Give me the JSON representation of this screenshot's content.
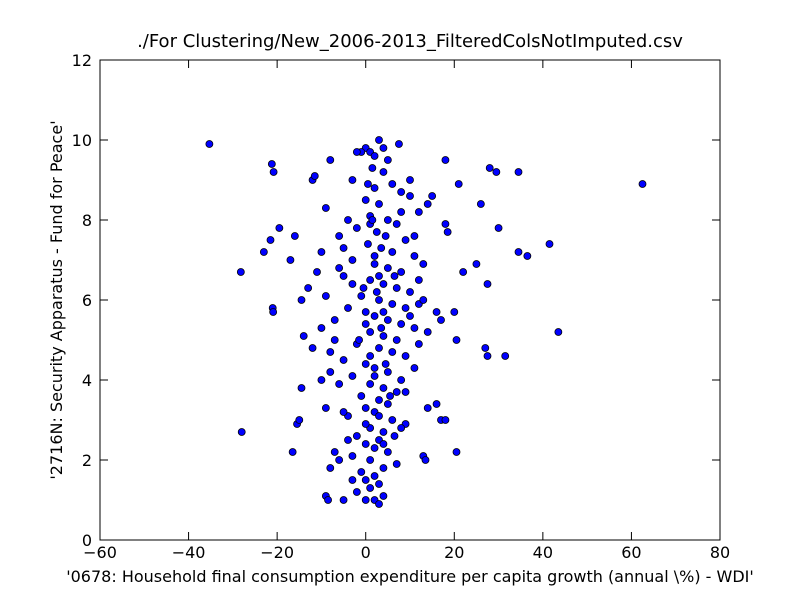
{
  "chart_data": {
    "type": "scatter",
    "title": "./For Clustering/New_2006-2013_FilteredColsNotImputed.csv",
    "x_label": "'0678: Household final consumption expenditure per capita growth  (annual \\%) - WDI'",
    "y_label": "'2716N: Security Apparatus - Fund for Peace'",
    "color": "#0000ff",
    "xlim": [
      -60,
      80
    ],
    "ylim": [
      0,
      12
    ],
    "xticks": [
      {
        "value": -60,
        "label": "−60"
      },
      {
        "value": -40,
        "label": "−40"
      },
      {
        "value": -20,
        "label": "−20"
      },
      0,
      20,
      40,
      60,
      80
    ],
    "yticks": [
      0,
      2,
      4,
      6,
      8,
      10,
      12
    ],
    "x": [
      -35.3,
      -21.2,
      -20.8,
      -28.2,
      -28,
      -21,
      -20.9,
      -16.5,
      -15.5,
      -15,
      -14.5,
      -17,
      -23,
      -21.5,
      -19.5,
      -12,
      -11.5,
      -8,
      -16,
      -14.5,
      -13,
      -14,
      -12,
      -10,
      -9,
      -8.5,
      18,
      21,
      26,
      28,
      29.5,
      34.5,
      62.5,
      30,
      34.5,
      36.5,
      41.5,
      22,
      25,
      27.5,
      43.5,
      20.5,
      27,
      27.5,
      31.5,
      20.5,
      17,
      18,
      16,
      14,
      13,
      13.5,
      20,
      16,
      17,
      15,
      14,
      18,
      18.5,
      0,
      1,
      2,
      3,
      4,
      -1,
      7.5,
      5,
      -2,
      1.5,
      4,
      -3,
      2,
      6,
      8,
      0,
      3,
      -4,
      10,
      12,
      1,
      5,
      7,
      -2,
      2.5,
      4.5,
      9,
      -6,
      0.5,
      3.5,
      6,
      11,
      -3,
      2,
      5,
      8,
      13,
      -5,
      1,
      4,
      7,
      10,
      -1,
      3,
      6,
      9,
      12,
      -4,
      0,
      2,
      5,
      8,
      11,
      -7,
      1,
      4,
      7,
      -2,
      14,
      3,
      6,
      9,
      -5,
      0,
      2,
      5,
      -3,
      8,
      1,
      4,
      7,
      -1,
      3,
      5,
      0,
      2,
      -4,
      6,
      9,
      1,
      4,
      -2,
      3,
      0,
      2,
      5,
      -3,
      1,
      7,
      4,
      -1,
      2,
      0,
      3,
      1,
      -2,
      4,
      2,
      0,
      3,
      -5,
      -6,
      -3,
      -7,
      -8,
      -6,
      -5,
      -4,
      -6,
      -3,
      10,
      8,
      11,
      12,
      13,
      10,
      12,
      11,
      9,
      8,
      -9,
      -10,
      -11,
      -9,
      -10,
      -8,
      -9,
      -7,
      -8,
      -5,
      1,
      2,
      3,
      4,
      0,
      1,
      2,
      3,
      0,
      4,
      0.5,
      1.5,
      2.5,
      3.5,
      4.5,
      5.5,
      6.5,
      -0.5,
      -1.5,
      6.5
    ],
    "values": [
      9.9,
      9.4,
      9.2,
      6.7,
      2.7,
      5.8,
      5.7,
      2.2,
      2.9,
      3.0,
      3.8,
      7.0,
      7.2,
      7.5,
      7.8,
      9.0,
      9.1,
      9.5,
      7.6,
      6.0,
      6.3,
      5.1,
      4.8,
      4.0,
      1.1,
      1.0,
      9.5,
      8.9,
      8.4,
      9.3,
      9.2,
      9.2,
      8.9,
      7.8,
      7.2,
      7.1,
      7.4,
      6.7,
      6.9,
      6.4,
      5.2,
      5.0,
      4.8,
      4.6,
      4.6,
      2.2,
      3.0,
      3.0,
      3.4,
      3.3,
      2.1,
      2.0,
      5.7,
      5.7,
      5.5,
      8.6,
      8.4,
      7.9,
      7.7,
      9.8,
      9.7,
      9.6,
      10.0,
      9.8,
      9.7,
      9.9,
      9.5,
      9.7,
      9.3,
      9.2,
      9.0,
      8.8,
      8.9,
      8.7,
      8.5,
      8.4,
      8.0,
      8.6,
      8.2,
      8.1,
      8.0,
      7.9,
      7.8,
      7.7,
      7.6,
      7.5,
      7.6,
      7.4,
      7.3,
      7.2,
      7.1,
      7.0,
      6.9,
      6.8,
      6.7,
      6.9,
      6.6,
      6.5,
      6.4,
      6.3,
      6.2,
      6.1,
      6.0,
      5.9,
      5.8,
      5.9,
      5.8,
      5.7,
      5.6,
      5.5,
      5.4,
      5.3,
      5.5,
      5.2,
      5.1,
      5.0,
      4.9,
      5.2,
      4.8,
      4.7,
      4.6,
      4.5,
      4.4,
      4.3,
      4.2,
      4.1,
      4.0,
      3.9,
      3.8,
      3.7,
      3.6,
      3.5,
      3.4,
      3.3,
      3.2,
      3.1,
      3.0,
      2.9,
      2.8,
      2.7,
      2.6,
      2.5,
      2.4,
      2.3,
      2.2,
      2.1,
      2.0,
      1.9,
      1.8,
      1.7,
      1.6,
      1.5,
      1.4,
      1.3,
      1.2,
      1.1,
      1.0,
      1.0,
      0.9,
      7.3,
      6.8,
      6.4,
      5.0,
      4.2,
      3.9,
      3.2,
      2.5,
      2.0,
      1.5,
      9.0,
      8.2,
      7.6,
      6.5,
      6.0,
      5.6,
      4.9,
      4.3,
      3.7,
      2.8,
      8.3,
      7.2,
      6.7,
      6.1,
      5.3,
      4.7,
      3.3,
      2.2,
      1.8,
      1.0,
      7.9,
      7.1,
      6.6,
      5.7,
      5.4,
      4.6,
      4.1,
      3.1,
      2.9,
      2.4,
      8.9,
      8.0,
      6.2,
      5.3,
      4.4,
      3.6,
      2.6,
      6.3,
      5.0,
      6.6
    ]
  }
}
